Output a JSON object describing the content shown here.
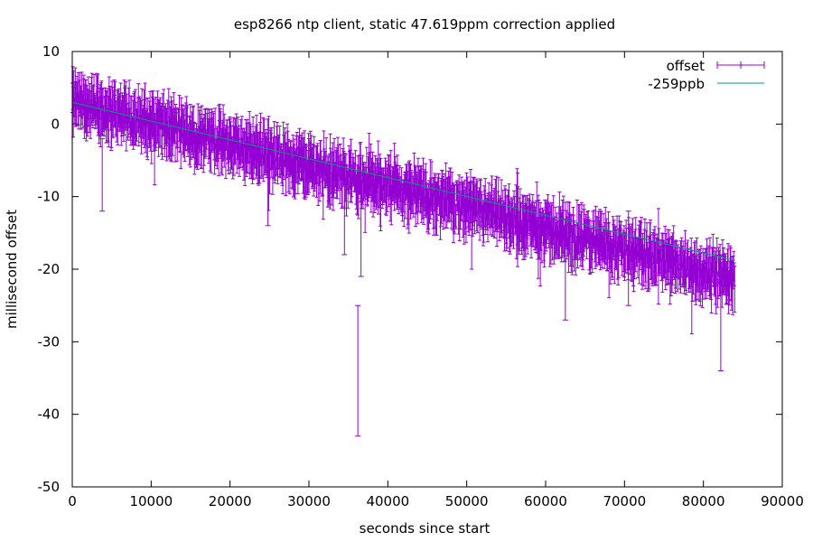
{
  "chart_data": {
    "type": "scatter",
    "title": "esp8266 ntp client, static 47.619ppm correction applied",
    "xlabel": "seconds since start",
    "ylabel": "millisecond offset",
    "xlim": [
      0,
      90000
    ],
    "ylim": [
      -50,
      10
    ],
    "xticks": [
      0,
      10000,
      20000,
      30000,
      40000,
      50000,
      60000,
      70000,
      80000,
      90000
    ],
    "yticks": [
      -50,
      -40,
      -30,
      -20,
      -10,
      0,
      10
    ],
    "grid": false,
    "legend_position": "top-right",
    "sample_interval_s": 64,
    "series": [
      {
        "name": "offset",
        "kind": "errorbars",
        "color": "#9400d3",
        "x_range": [
          0,
          84000
        ],
        "trend_start": 3.0,
        "trend_end": -21.5,
        "typical_errorbar_halfwidth": 2.5,
        "outliers": [
          {
            "x": 3800,
            "y_low": -12,
            "y_high": -2
          },
          {
            "x": 36200,
            "y_low": -43,
            "y_high": -25
          },
          {
            "x": 36600,
            "y_low": -21,
            "y_high": -7
          },
          {
            "x": 34500,
            "y_low": -18,
            "y_high": -6
          },
          {
            "x": 24800,
            "y_low": -14,
            "y_high": -2
          },
          {
            "x": 62500,
            "y_low": -27,
            "y_high": -15
          },
          {
            "x": 82200,
            "y_low": -34,
            "y_high": -18
          },
          {
            "x": 70500,
            "y_low": -25,
            "y_high": -12
          }
        ]
      },
      {
        "name": "-259ppb",
        "kind": "line",
        "color": "#009e73",
        "x": [
          0,
          84000
        ],
        "y": [
          3.0,
          -18.8
        ]
      }
    ]
  }
}
